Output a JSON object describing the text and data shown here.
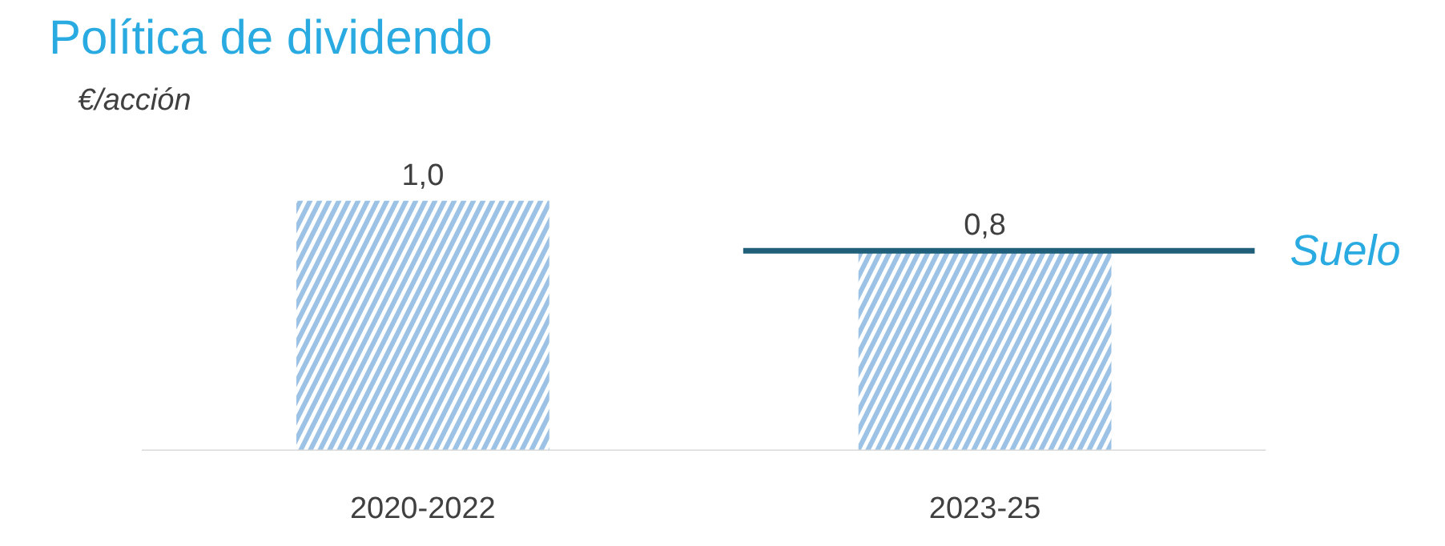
{
  "chart_data": {
    "type": "bar",
    "title": "Política de dividendo",
    "ylabel": "€/acción",
    "categories": [
      "2020-2022",
      "2023-25"
    ],
    "values": [
      1.0,
      0.8
    ],
    "color": "#9cc2e5",
    "value_labels": [
      "1,0",
      "0,8"
    ],
    "tick_labels": "x",
    "grid": false,
    "ref_lines": [
      {
        "axis": "y",
        "value": 0.8,
        "label": "Suelo",
        "color": "#1f5f7a"
      }
    ]
  }
}
